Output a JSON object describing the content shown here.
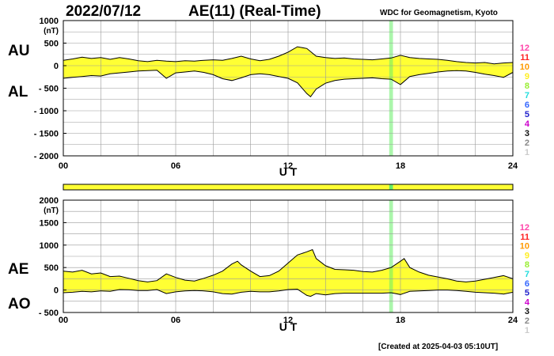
{
  "header": {
    "date": "2022/07/12",
    "title": "AE(11) (Real-Time)",
    "source": "WDC for Geomagnetism, Kyoto"
  },
  "footer": {
    "created": "[Created at 2025-04-03 05:10UT]"
  },
  "colors": {
    "fill": "#ffff33",
    "grid": "#999999",
    "axis": "#000000",
    "highlight": "#66ee66"
  },
  "legend": {
    "levels": [
      {
        "label": "12",
        "color": "#ff44aa"
      },
      {
        "label": "11",
        "color": "#ff2222"
      },
      {
        "label": "10",
        "color": "#ff9900"
      },
      {
        "label": "9",
        "color": "#ffee22"
      },
      {
        "label": "8",
        "color": "#99ee33"
      },
      {
        "label": "7",
        "color": "#22dddd"
      },
      {
        "label": "6",
        "color": "#3366ff"
      },
      {
        "label": "5",
        "color": "#2222cc"
      },
      {
        "label": "4",
        "color": "#cc00cc"
      },
      {
        "label": "3",
        "color": "#111111"
      },
      {
        "label": "2",
        "color": "#888888"
      },
      {
        "label": "1",
        "color": "#cccccc"
      }
    ]
  },
  "chart_data": [
    {
      "type": "area",
      "name": "AU/AL",
      "upper_label": "AU",
      "lower_label": "AL",
      "unit": "(nT)",
      "xlabel": "U T",
      "xlim": [
        0,
        24
      ],
      "ylim": [
        -2000,
        1000
      ],
      "x_ticks": [
        "00",
        "06",
        "12",
        "18",
        "24"
      ],
      "y_ticks": [
        "1000",
        "500",
        "0",
        "- 500",
        "- 1000",
        "- 1500",
        "- 2000"
      ],
      "grid": true,
      "highlight_hours": [
        17.4,
        17.6
      ],
      "upper": [
        [
          0,
          120
        ],
        [
          0.5,
          150
        ],
        [
          1,
          190
        ],
        [
          1.5,
          160
        ],
        [
          2,
          180
        ],
        [
          2.5,
          140
        ],
        [
          3,
          180
        ],
        [
          3.5,
          150
        ],
        [
          4,
          110
        ],
        [
          4.5,
          90
        ],
        [
          5,
          120
        ],
        [
          5.5,
          100
        ],
        [
          6,
          90
        ],
        [
          6.5,
          110
        ],
        [
          7,
          100
        ],
        [
          7.5,
          120
        ],
        [
          8,
          130
        ],
        [
          8.5,
          120
        ],
        [
          9,
          160
        ],
        [
          9.5,
          210
        ],
        [
          10,
          150
        ],
        [
          10.5,
          110
        ],
        [
          11,
          140
        ],
        [
          11.5,
          210
        ],
        [
          12,
          300
        ],
        [
          12.5,
          420
        ],
        [
          13,
          380
        ],
        [
          13.5,
          210
        ],
        [
          14,
          180
        ],
        [
          14.5,
          160
        ],
        [
          15,
          170
        ],
        [
          15.5,
          150
        ],
        [
          16,
          140
        ],
        [
          16.5,
          130
        ],
        [
          17,
          150
        ],
        [
          17.5,
          170
        ],
        [
          18,
          230
        ],
        [
          18.5,
          180
        ],
        [
          19,
          160
        ],
        [
          19.5,
          150
        ],
        [
          20,
          140
        ],
        [
          20.5,
          120
        ],
        [
          21,
          90
        ],
        [
          21.5,
          70
        ],
        [
          22,
          60
        ],
        [
          22.5,
          70
        ],
        [
          23,
          40
        ],
        [
          23.5,
          60
        ],
        [
          24,
          70
        ]
      ],
      "lower": [
        [
          0,
          -280
        ],
        [
          0.5,
          -260
        ],
        [
          1,
          -240
        ],
        [
          1.5,
          -220
        ],
        [
          2,
          -230
        ],
        [
          2.5,
          -180
        ],
        [
          3,
          -160
        ],
        [
          3.5,
          -140
        ],
        [
          4,
          -120
        ],
        [
          4.5,
          -110
        ],
        [
          5,
          -100
        ],
        [
          5.5,
          -280
        ],
        [
          6,
          -160
        ],
        [
          6.5,
          -140
        ],
        [
          7,
          -120
        ],
        [
          7.5,
          -150
        ],
        [
          8,
          -200
        ],
        [
          8.5,
          -290
        ],
        [
          9,
          -330
        ],
        [
          9.5,
          -270
        ],
        [
          10,
          -200
        ],
        [
          10.5,
          -180
        ],
        [
          11,
          -200
        ],
        [
          11.5,
          -240
        ],
        [
          12,
          -280
        ],
        [
          12.5,
          -380
        ],
        [
          13,
          -620
        ],
        [
          13.2,
          -690
        ],
        [
          13.5,
          -520
        ],
        [
          14,
          -390
        ],
        [
          14.5,
          -330
        ],
        [
          15,
          -300
        ],
        [
          15.5,
          -290
        ],
        [
          16,
          -280
        ],
        [
          16.5,
          -270
        ],
        [
          17,
          -290
        ],
        [
          17.5,
          -300
        ],
        [
          18,
          -420
        ],
        [
          18.5,
          -240
        ],
        [
          19,
          -200
        ],
        [
          19.5,
          -170
        ],
        [
          20,
          -140
        ],
        [
          20.5,
          -120
        ],
        [
          21,
          -110
        ],
        [
          21.5,
          -120
        ],
        [
          22,
          -150
        ],
        [
          22.5,
          -190
        ],
        [
          23,
          -220
        ],
        [
          23.5,
          -260
        ],
        [
          24,
          -150
        ]
      ]
    },
    {
      "type": "area",
      "name": "AE/AO",
      "upper_label": "AE",
      "lower_label": "AO",
      "unit": "(nT)",
      "xlabel": "U T",
      "xlim": [
        0,
        24
      ],
      "ylim": [
        -500,
        2000
      ],
      "x_ticks": [
        "00",
        "06",
        "12",
        "18",
        "24"
      ],
      "y_ticks": [
        "2000",
        "1500",
        "1000",
        "500",
        "0",
        "- 500"
      ],
      "grid": true,
      "highlight_hours": [
        17.4,
        17.6
      ],
      "upper": [
        [
          0,
          420
        ],
        [
          0.5,
          400
        ],
        [
          1,
          440
        ],
        [
          1.5,
          360
        ],
        [
          2,
          380
        ],
        [
          2.5,
          300
        ],
        [
          3,
          310
        ],
        [
          3.5,
          260
        ],
        [
          4,
          210
        ],
        [
          4.5,
          180
        ],
        [
          5,
          210
        ],
        [
          5.5,
          360
        ],
        [
          6,
          280
        ],
        [
          6.5,
          220
        ],
        [
          7,
          200
        ],
        [
          7.5,
          260
        ],
        [
          8,
          330
        ],
        [
          8.5,
          420
        ],
        [
          9,
          580
        ],
        [
          9.3,
          640
        ],
        [
          9.5,
          560
        ],
        [
          10,
          420
        ],
        [
          10.5,
          300
        ],
        [
          11,
          320
        ],
        [
          11.5,
          420
        ],
        [
          12,
          600
        ],
        [
          12.5,
          780
        ],
        [
          13,
          850
        ],
        [
          13.3,
          900
        ],
        [
          13.5,
          700
        ],
        [
          14,
          540
        ],
        [
          14.5,
          460
        ],
        [
          15,
          450
        ],
        [
          15.5,
          440
        ],
        [
          16,
          410
        ],
        [
          16.5,
          400
        ],
        [
          17,
          440
        ],
        [
          17.5,
          500
        ],
        [
          18,
          640
        ],
        [
          18.2,
          700
        ],
        [
          18.5,
          500
        ],
        [
          19,
          400
        ],
        [
          19.5,
          330
        ],
        [
          20,
          290
        ],
        [
          20.5,
          250
        ],
        [
          21,
          200
        ],
        [
          21.5,
          180
        ],
        [
          22,
          200
        ],
        [
          22.5,
          240
        ],
        [
          23,
          280
        ],
        [
          23.5,
          320
        ],
        [
          24,
          250
        ]
      ],
      "lower": [
        [
          0,
          -60
        ],
        [
          0.5,
          -50
        ],
        [
          1,
          -30
        ],
        [
          1.5,
          -40
        ],
        [
          2,
          -20
        ],
        [
          2.5,
          -30
        ],
        [
          3,
          10
        ],
        [
          3.5,
          5
        ],
        [
          4,
          -10
        ],
        [
          4.5,
          -10
        ],
        [
          5,
          10
        ],
        [
          5.5,
          -80
        ],
        [
          6,
          -40
        ],
        [
          6.5,
          -20
        ],
        [
          7,
          -10
        ],
        [
          7.5,
          -20
        ],
        [
          8,
          -40
        ],
        [
          8.5,
          -80
        ],
        [
          9,
          -90
        ],
        [
          9.5,
          -50
        ],
        [
          10,
          -30
        ],
        [
          10.5,
          -40
        ],
        [
          11,
          -40
        ],
        [
          11.5,
          -20
        ],
        [
          12,
          10
        ],
        [
          12.5,
          20
        ],
        [
          13,
          -120
        ],
        [
          13.2,
          -140
        ],
        [
          13.5,
          -80
        ],
        [
          14,
          -110
        ],
        [
          14.5,
          -80
        ],
        [
          15,
          -70
        ],
        [
          15.5,
          -70
        ],
        [
          16,
          -70
        ],
        [
          16.5,
          -70
        ],
        [
          17,
          -70
        ],
        [
          17.5,
          -60
        ],
        [
          18,
          -100
        ],
        [
          18.5,
          -30
        ],
        [
          19,
          -20
        ],
        [
          19.5,
          -10
        ],
        [
          20,
          0
        ],
        [
          20.5,
          0
        ],
        [
          21,
          -10
        ],
        [
          21.5,
          -30
        ],
        [
          22,
          -50
        ],
        [
          22.5,
          -60
        ],
        [
          23,
          -70
        ],
        [
          23.5,
          -90
        ],
        [
          24,
          -50
        ]
      ]
    }
  ]
}
